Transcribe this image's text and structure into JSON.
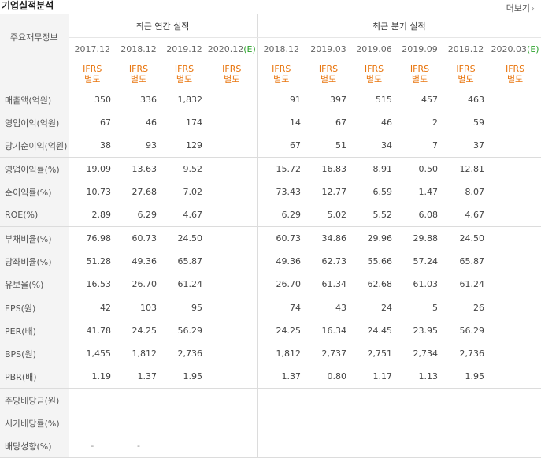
{
  "header": {
    "title": "기업실적분석",
    "more_label": "더보기"
  },
  "table": {
    "row_header_label": "주요재무정보",
    "annual_group_label": "최근 연간 실적",
    "quarter_group_label": "최근 분기 실적",
    "annual_dates": [
      "2017.12",
      "2018.12",
      "2019.12",
      "2020.12"
    ],
    "annual_estimate_mark": "(E)",
    "quarter_dates": [
      "2018.12",
      "2019.03",
      "2019.06",
      "2019.09",
      "2019.12",
      "2020.03"
    ],
    "quarter_estimate_mark": "(E)",
    "ifrs_label": "IFRS",
    "ifrs_sub_label": "별도",
    "dash": "-",
    "rows": [
      {
        "label": "매출액(억원)",
        "annual": [
          "350",
          "336",
          "1,832",
          ""
        ],
        "quarter": [
          "91",
          "397",
          "515",
          "457",
          "463",
          ""
        ]
      },
      {
        "label": "영업이익(억원)",
        "annual": [
          "67",
          "46",
          "174",
          ""
        ],
        "quarter": [
          "14",
          "67",
          "46",
          "2",
          "59",
          ""
        ]
      },
      {
        "label": "당기순이익(억원)",
        "annual": [
          "38",
          "93",
          "129",
          ""
        ],
        "quarter": [
          "67",
          "51",
          "34",
          "7",
          "37",
          ""
        ]
      },
      {
        "label": "영업이익률(%)",
        "annual": [
          "19.09",
          "13.63",
          "9.52",
          ""
        ],
        "quarter": [
          "15.72",
          "16.83",
          "8.91",
          "0.50",
          "12.81",
          ""
        ]
      },
      {
        "label": "순이익률(%)",
        "annual": [
          "10.73",
          "27.68",
          "7.02",
          ""
        ],
        "quarter": [
          "73.43",
          "12.77",
          "6.59",
          "1.47",
          "8.07",
          ""
        ]
      },
      {
        "label": "ROE(%)",
        "annual": [
          "2.89",
          "6.29",
          "4.67",
          ""
        ],
        "quarter": [
          "6.29",
          "5.02",
          "5.52",
          "6.08",
          "4.67",
          ""
        ]
      },
      {
        "label": "부채비율(%)",
        "annual": [
          "76.98",
          "60.73",
          "24.50",
          ""
        ],
        "quarter": [
          "60.73",
          "34.86",
          "29.96",
          "29.88",
          "24.50",
          ""
        ]
      },
      {
        "label": "당좌비율(%)",
        "annual": [
          "51.28",
          "49.36",
          "65.87",
          ""
        ],
        "quarter": [
          "49.36",
          "62.73",
          "55.66",
          "57.24",
          "65.87",
          ""
        ]
      },
      {
        "label": "유보율(%)",
        "annual": [
          "16.53",
          "26.70",
          "61.24",
          ""
        ],
        "quarter": [
          "26.70",
          "61.34",
          "62.68",
          "61.03",
          "61.24",
          ""
        ]
      },
      {
        "label": "EPS(원)",
        "annual": [
          "42",
          "103",
          "95",
          ""
        ],
        "quarter": [
          "74",
          "43",
          "24",
          "5",
          "26",
          ""
        ]
      },
      {
        "label": "PER(배)",
        "annual": [
          "41.78",
          "24.25",
          "56.29",
          ""
        ],
        "quarter": [
          "24.25",
          "16.34",
          "24.45",
          "23.95",
          "56.29",
          ""
        ]
      },
      {
        "label": "BPS(원)",
        "annual": [
          "1,455",
          "1,812",
          "2,736",
          ""
        ],
        "quarter": [
          "1,812",
          "2,737",
          "2,751",
          "2,734",
          "2,736",
          ""
        ]
      },
      {
        "label": "PBR(배)",
        "annual": [
          "1.19",
          "1.37",
          "1.95",
          ""
        ],
        "quarter": [
          "1.37",
          "0.80",
          "1.17",
          "1.13",
          "1.95",
          ""
        ]
      },
      {
        "label": "주당배당금(원)",
        "annual": [
          "",
          "",
          "",
          ""
        ],
        "quarter": [
          "",
          "",
          "",
          "",
          "",
          ""
        ]
      },
      {
        "label": "시가배당률(%)",
        "annual": [
          "",
          "",
          "",
          ""
        ],
        "quarter": [
          "",
          "",
          "",
          "",
          "",
          ""
        ]
      },
      {
        "label": "배당성향(%)",
        "annual": [
          "-",
          "-",
          "",
          ""
        ],
        "quarter": [
          "",
          "",
          "",
          "",
          "",
          ""
        ]
      }
    ]
  }
}
